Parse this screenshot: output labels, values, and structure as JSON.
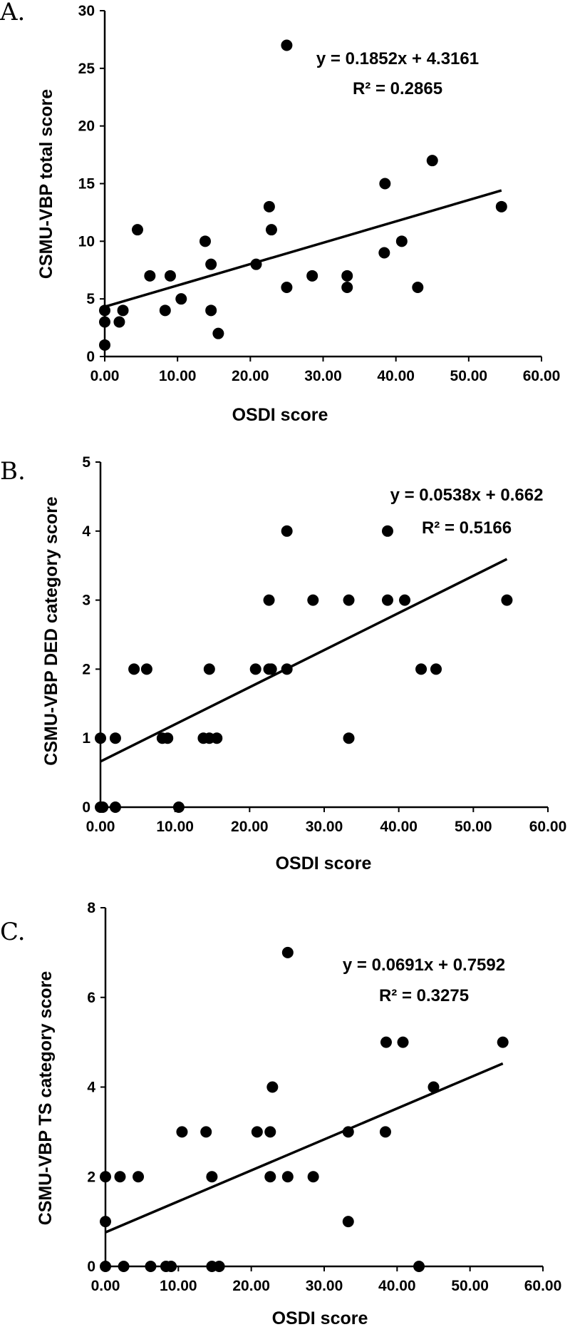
{
  "chart_data": [
    {
      "type": "scatter",
      "panel": "A.",
      "xlabel": "OSDI score",
      "ylabel": "CSMU-VBP total score",
      "xlim": [
        0,
        60
      ],
      "ylim": [
        0,
        30
      ],
      "xticks": [
        "0.00",
        "10.00",
        "20.00",
        "30.00",
        "40.00",
        "50.00",
        "60.00"
      ],
      "yticks": [
        "0",
        "5",
        "10",
        "15",
        "20",
        "25",
        "30"
      ],
      "equation": "y = 0.1852x + 4.3161",
      "r2": "R² = 0.2865",
      "trendline": {
        "slope": 0.1852,
        "intercept": 4.3161,
        "x_range": [
          0,
          54.5
        ]
      },
      "points": [
        [
          0,
          4
        ],
        [
          0,
          3
        ],
        [
          0,
          1
        ],
        [
          2,
          3
        ],
        [
          2.5,
          4
        ],
        [
          4.5,
          11
        ],
        [
          6.2,
          7
        ],
        [
          8.3,
          4
        ],
        [
          9,
          7
        ],
        [
          10.5,
          5
        ],
        [
          13.8,
          10
        ],
        [
          14.6,
          4
        ],
        [
          14.6,
          8
        ],
        [
          15.6,
          2
        ],
        [
          20.8,
          8
        ],
        [
          22.6,
          13
        ],
        [
          22.9,
          11
        ],
        [
          25,
          27
        ],
        [
          25,
          6
        ],
        [
          28.5,
          7
        ],
        [
          33.3,
          7
        ],
        [
          33.3,
          6
        ],
        [
          38.4,
          9
        ],
        [
          38.5,
          15
        ],
        [
          40.8,
          10
        ],
        [
          43,
          6
        ],
        [
          45,
          17
        ],
        [
          54.5,
          13
        ]
      ]
    },
    {
      "type": "scatter",
      "panel": "B.",
      "xlabel": "OSDI score",
      "ylabel": "CSMU-VBP DED category score",
      "xlim": [
        0,
        60
      ],
      "ylim": [
        0,
        5
      ],
      "xticks": [
        "0.00",
        "10.00",
        "20.00",
        "30.00",
        "40.00",
        "50.00",
        "60.00"
      ],
      "yticks": [
        "0",
        "1",
        "2",
        "3",
        "4",
        "5"
      ],
      "equation": "y = 0.0538x + 0.662",
      "r2": "R² = 0.5166",
      "trendline": {
        "slope": 0.0538,
        "intercept": 0.662,
        "x_range": [
          0,
          54.5
        ]
      },
      "points": [
        [
          0,
          1
        ],
        [
          0,
          0
        ],
        [
          0.3,
          0
        ],
        [
          2,
          1
        ],
        [
          2,
          0
        ],
        [
          4.5,
          2
        ],
        [
          6.2,
          2
        ],
        [
          8.3,
          1
        ],
        [
          9,
          1
        ],
        [
          10.5,
          0
        ],
        [
          13.8,
          1
        ],
        [
          14.6,
          2
        ],
        [
          14.6,
          1
        ],
        [
          15.6,
          1
        ],
        [
          20.8,
          2
        ],
        [
          22.6,
          3
        ],
        [
          22.6,
          2
        ],
        [
          22.9,
          2
        ],
        [
          25,
          4
        ],
        [
          25,
          2
        ],
        [
          28.5,
          3
        ],
        [
          33.3,
          3
        ],
        [
          33.3,
          1
        ],
        [
          38.5,
          4
        ],
        [
          38.5,
          3
        ],
        [
          40.8,
          3
        ],
        [
          43,
          2
        ],
        [
          45,
          2
        ],
        [
          54.5,
          3
        ]
      ]
    },
    {
      "type": "scatter",
      "panel": "C.",
      "xlabel": "OSDI score",
      "ylabel": "CSMU-VBP TS category score",
      "xlim": [
        0,
        60
      ],
      "ylim": [
        0,
        8
      ],
      "xticks": [
        "0.00",
        "10.00",
        "20.00",
        "30.00",
        "40.00",
        "50.00",
        "60.00"
      ],
      "yticks": [
        "0",
        "2",
        "4",
        "6",
        "8"
      ],
      "equation": "y = 0.0691x + 0.7592",
      "r2": "R² = 0.3275",
      "trendline": {
        "slope": 0.0691,
        "intercept": 0.7592,
        "x_range": [
          0,
          54.5
        ]
      },
      "points": [
        [
          0,
          2
        ],
        [
          0,
          1
        ],
        [
          0,
          0
        ],
        [
          2,
          2
        ],
        [
          2.5,
          0
        ],
        [
          4.5,
          2
        ],
        [
          6.2,
          0
        ],
        [
          8.3,
          0
        ],
        [
          9,
          0
        ],
        [
          10.5,
          3
        ],
        [
          13.8,
          3
        ],
        [
          14.6,
          2
        ],
        [
          14.6,
          0
        ],
        [
          15.6,
          0
        ],
        [
          20.8,
          3
        ],
        [
          22.6,
          2
        ],
        [
          22.6,
          3
        ],
        [
          22.9,
          4
        ],
        [
          25,
          7
        ],
        [
          25,
          2
        ],
        [
          28.5,
          2
        ],
        [
          33.3,
          3
        ],
        [
          33.3,
          1
        ],
        [
          38.4,
          3
        ],
        [
          38.5,
          5
        ],
        [
          40.8,
          5
        ],
        [
          43,
          0
        ],
        [
          45,
          4
        ],
        [
          54.5,
          5
        ]
      ]
    }
  ]
}
